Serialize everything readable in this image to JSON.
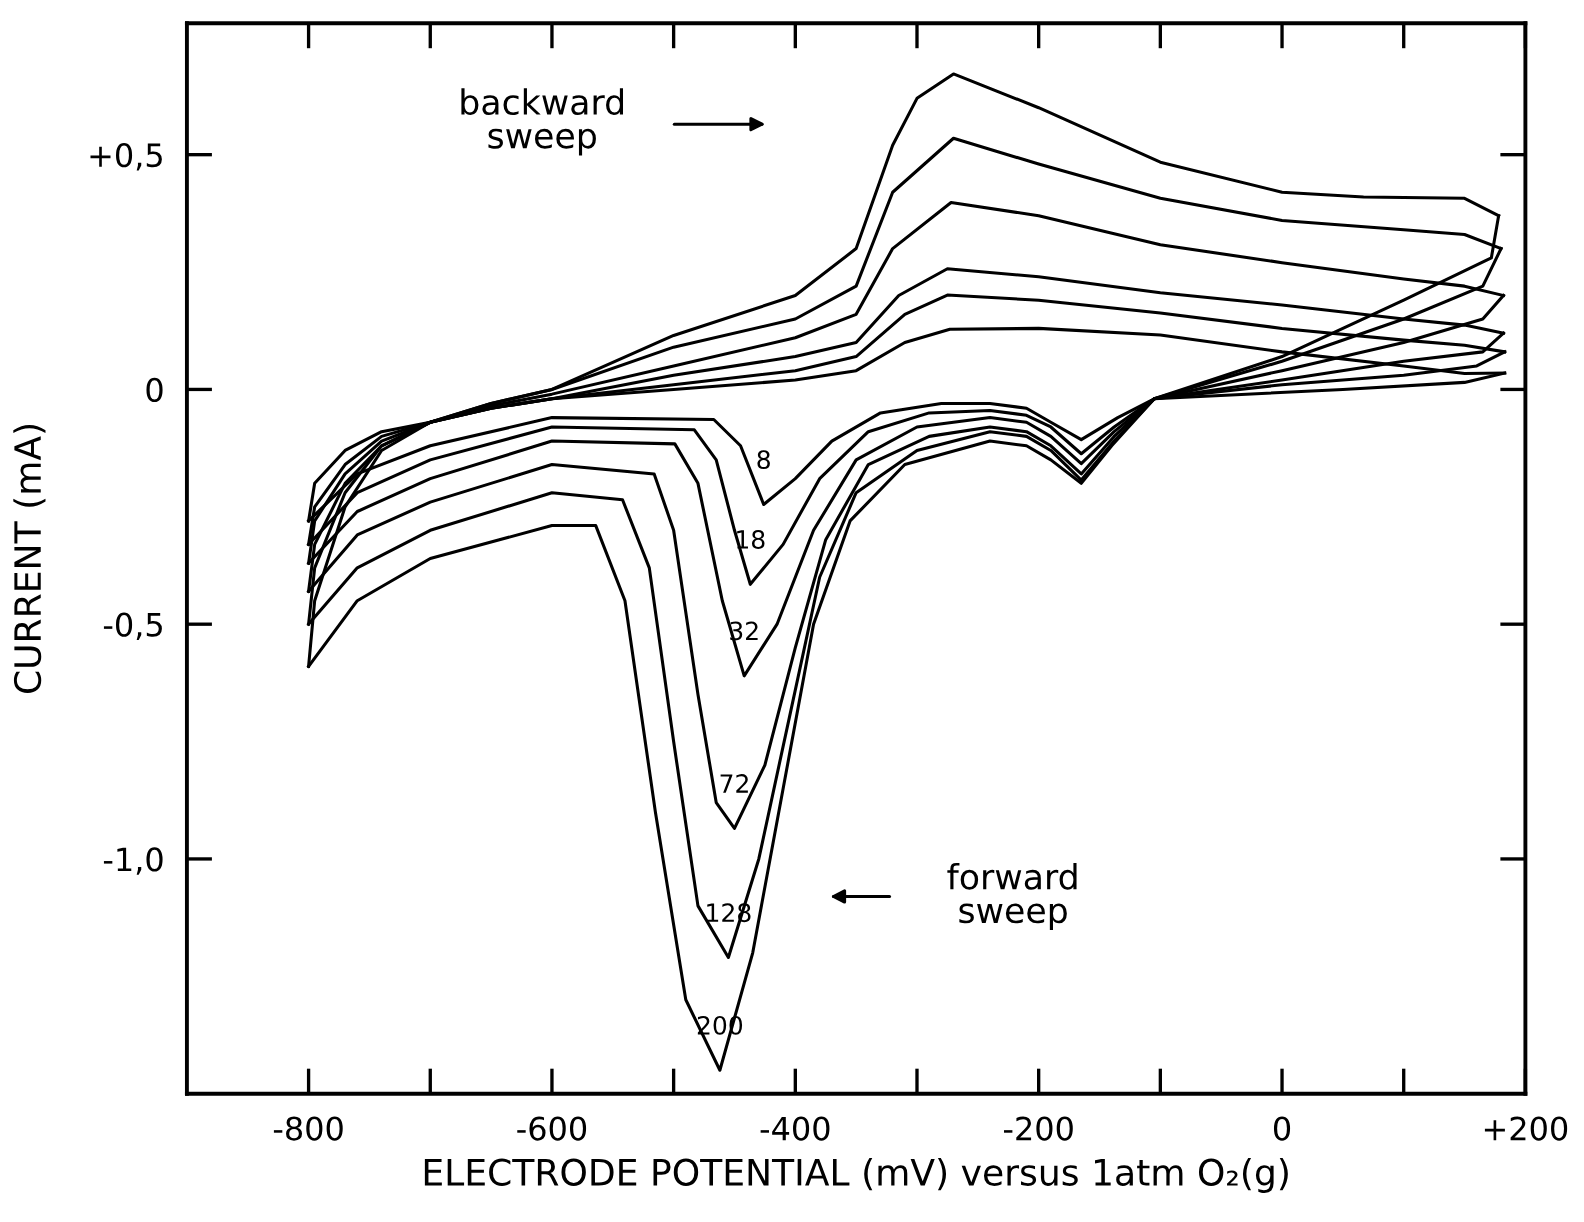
{
  "chart_data": {
    "type": "line",
    "xlabel": "ELECTRODE POTENTIAL (mV) versus 1atm O₂(g)",
    "ylabel": "CURRENT (mA)",
    "xlim": [
      -900,
      200
    ],
    "ylim": [
      -1.5,
      0.78
    ],
    "xticks": [
      {
        "value": -800,
        "label": "-800"
      },
      {
        "value": -700,
        "label": null
      },
      {
        "value": -600,
        "label": "-600"
      },
      {
        "value": -500,
        "label": null
      },
      {
        "value": -400,
        "label": "-400"
      },
      {
        "value": -300,
        "label": null
      },
      {
        "value": -200,
        "label": "-200"
      },
      {
        "value": -100,
        "label": null
      },
      0,
      {
        "value": 100,
        "label": null
      },
      {
        "value": 200,
        "label": "+200"
      }
    ],
    "yticks": [
      {
        "value": 0.5,
        "label": "+0,5"
      },
      0,
      {
        "value": -0.5,
        "label": "-0,5"
      },
      {
        "value": -1.0,
        "label": "-1,0"
      }
    ],
    "annotations": [
      "backward\nsweep",
      "forward\nsweep"
    ],
    "series": [
      {
        "name": "8",
        "color": "#000000",
        "x": [
          183,
          150,
          50,
          -105,
          -135,
          -165,
          -190,
          -210,
          -240,
          -280,
          -330,
          -370,
          -400,
          -426,
          -445,
          -467,
          -600,
          -700,
          -760,
          -800
        ],
        "values": [
          0.035,
          0.015,
          0.0,
          -0.02,
          -0.06,
          -0.107,
          -0.07,
          -0.04,
          -0.03,
          -0.03,
          -0.05,
          -0.11,
          -0.19,
          -0.245,
          -0.12,
          -0.064,
          -0.06,
          -0.12,
          -0.18,
          -0.28
        ]
      },
      {
        "color": "#000000",
        "x": [
          -800,
          -795,
          -770,
          -740,
          -700,
          -650,
          -600,
          -500,
          -400,
          -350,
          -310,
          -273,
          -200,
          -100,
          0,
          100,
          150,
          183
        ],
        "values": [
          -0.28,
          -0.2,
          -0.13,
          -0.09,
          -0.07,
          -0.04,
          -0.02,
          0.0,
          0.02,
          0.04,
          0.1,
          0.128,
          0.13,
          0.116,
          0.08,
          0.05,
          0.034,
          0.035
        ]
      },
      {
        "name": "18",
        "color": "#000000",
        "x": [
          183,
          160,
          100,
          0,
          -105,
          -138,
          -165,
          -190,
          -210,
          -240,
          -290,
          -340,
          -380,
          -410,
          -437,
          -450,
          -465,
          -483,
          -600,
          -700,
          -760,
          -800
        ],
        "values": [
          0.08,
          0.05,
          0.03,
          0.01,
          -0.02,
          -0.08,
          -0.137,
          -0.08,
          -0.055,
          -0.045,
          -0.05,
          -0.09,
          -0.19,
          -0.33,
          -0.415,
          -0.3,
          -0.15,
          -0.086,
          -0.08,
          -0.15,
          -0.22,
          -0.33
        ]
      },
      {
        "color": "#000000",
        "x": [
          -800,
          -795,
          -770,
          -740,
          -700,
          -650,
          -600,
          -500,
          -400,
          -350,
          -310,
          -275,
          -200,
          -100,
          0,
          100,
          150,
          183
        ],
        "values": [
          -0.33,
          -0.25,
          -0.16,
          -0.1,
          -0.07,
          -0.04,
          -0.02,
          0.01,
          0.04,
          0.07,
          0.16,
          0.201,
          0.19,
          0.163,
          0.13,
          0.105,
          0.094,
          0.08
        ]
      },
      {
        "name": "32",
        "color": "#000000",
        "x": [
          182,
          165,
          100,
          0,
          -105,
          -138,
          -165,
          -190,
          -210,
          -240,
          -300,
          -350,
          -385,
          -415,
          -442,
          -460,
          -480,
          -499,
          -600,
          -700,
          -760,
          -800
        ],
        "values": [
          0.12,
          0.08,
          0.06,
          0.02,
          -0.02,
          -0.09,
          -0.158,
          -0.1,
          -0.07,
          -0.06,
          -0.08,
          -0.15,
          -0.3,
          -0.5,
          -0.61,
          -0.45,
          -0.2,
          -0.116,
          -0.11,
          -0.19,
          -0.26,
          -0.37
        ]
      },
      {
        "color": "#000000",
        "x": [
          -800,
          -795,
          -770,
          -740,
          -700,
          -650,
          -600,
          -500,
          -400,
          -350,
          -315,
          -275,
          -200,
          -100,
          0,
          100,
          150,
          182
        ],
        "values": [
          -0.37,
          -0.28,
          -0.18,
          -0.11,
          -0.07,
          -0.04,
          -0.02,
          0.03,
          0.07,
          0.1,
          0.2,
          0.257,
          0.24,
          0.206,
          0.18,
          0.15,
          0.137,
          0.12
        ]
      },
      {
        "name": "72",
        "color": "#000000",
        "x": [
          182,
          165,
          100,
          0,
          -105,
          -138,
          -165,
          -190,
          -210,
          -240,
          -290,
          -340,
          -375,
          -400,
          -425,
          -450,
          -465,
          -480,
          -500,
          -516,
          -600,
          -700,
          -760,
          -800
        ],
        "values": [
          0.2,
          0.15,
          0.1,
          0.04,
          -0.02,
          -0.1,
          -0.18,
          -0.12,
          -0.09,
          -0.08,
          -0.1,
          -0.16,
          -0.32,
          -0.55,
          -0.8,
          -0.935,
          -0.88,
          -0.65,
          -0.3,
          -0.18,
          -0.16,
          -0.24,
          -0.31,
          -0.43
        ]
      },
      {
        "color": "#000000",
        "x": [
          -800,
          -795,
          -770,
          -740,
          -700,
          -650,
          -600,
          -500,
          -400,
          -350,
          -320,
          -272,
          -200,
          -100,
          0,
          100,
          150,
          182
        ],
        "values": [
          -0.43,
          -0.33,
          -0.2,
          -0.12,
          -0.07,
          -0.035,
          -0.01,
          0.05,
          0.11,
          0.16,
          0.3,
          0.398,
          0.37,
          0.308,
          0.27,
          0.235,
          0.22,
          0.2
        ]
      },
      {
        "name": "128",
        "color": "#000000",
        "x": [
          180,
          165,
          100,
          0,
          -105,
          -138,
          -165,
          -190,
          -210,
          -240,
          -300,
          -350,
          -380,
          -405,
          -430,
          -455,
          -480,
          -500,
          -520,
          -542,
          -600,
          -700,
          -760,
          -800
        ],
        "values": [
          0.3,
          0.22,
          0.15,
          0.06,
          -0.02,
          -0.11,
          -0.193,
          -0.13,
          -0.1,
          -0.09,
          -0.13,
          -0.22,
          -0.4,
          -0.7,
          -1.0,
          -1.21,
          -1.1,
          -0.75,
          -0.38,
          -0.235,
          -0.22,
          -0.3,
          -0.38,
          -0.5
        ]
      },
      {
        "color": "#000000",
        "x": [
          -800,
          -795,
          -770,
          -740,
          -700,
          -650,
          -600,
          -500,
          -400,
          -350,
          -320,
          -270,
          -200,
          -100,
          0,
          100,
          150,
          180
        ],
        "values": [
          -0.5,
          -0.38,
          -0.22,
          -0.12,
          -0.07,
          -0.03,
          0.0,
          0.09,
          0.15,
          0.22,
          0.42,
          0.535,
          0.48,
          0.407,
          0.36,
          0.34,
          0.33,
          0.3
        ]
      },
      {
        "name": "200",
        "color": "#000000",
        "x": [
          178,
          172,
          100,
          0,
          -105,
          -140,
          -165,
          -190,
          -210,
          -240,
          -310,
          -355,
          -385,
          -410,
          -435,
          -462,
          -490,
          -515,
          -540,
          -564,
          -600,
          -700,
          -760,
          -800
        ],
        "values": [
          0.37,
          0.28,
          0.19,
          0.07,
          -0.02,
          -0.12,
          -0.2,
          -0.15,
          -0.12,
          -0.11,
          -0.16,
          -0.28,
          -0.5,
          -0.85,
          -1.2,
          -1.45,
          -1.3,
          -0.9,
          -0.45,
          -0.29,
          -0.29,
          -0.36,
          -0.45,
          -0.59
        ]
      },
      {
        "color": "#000000",
        "x": [
          -800,
          -795,
          -770,
          -740,
          -700,
          -650,
          -600,
          -500,
          -400,
          -350,
          -320,
          -300,
          -270,
          -200,
          -100,
          0,
          67,
          150,
          178
        ],
        "values": [
          -0.59,
          -0.45,
          -0.25,
          -0.13,
          -0.07,
          -0.03,
          0.0,
          0.115,
          0.2,
          0.3,
          0.52,
          0.62,
          0.672,
          0.6,
          0.484,
          0.42,
          0.41,
          0.407,
          0.37
        ]
      }
    ]
  }
}
